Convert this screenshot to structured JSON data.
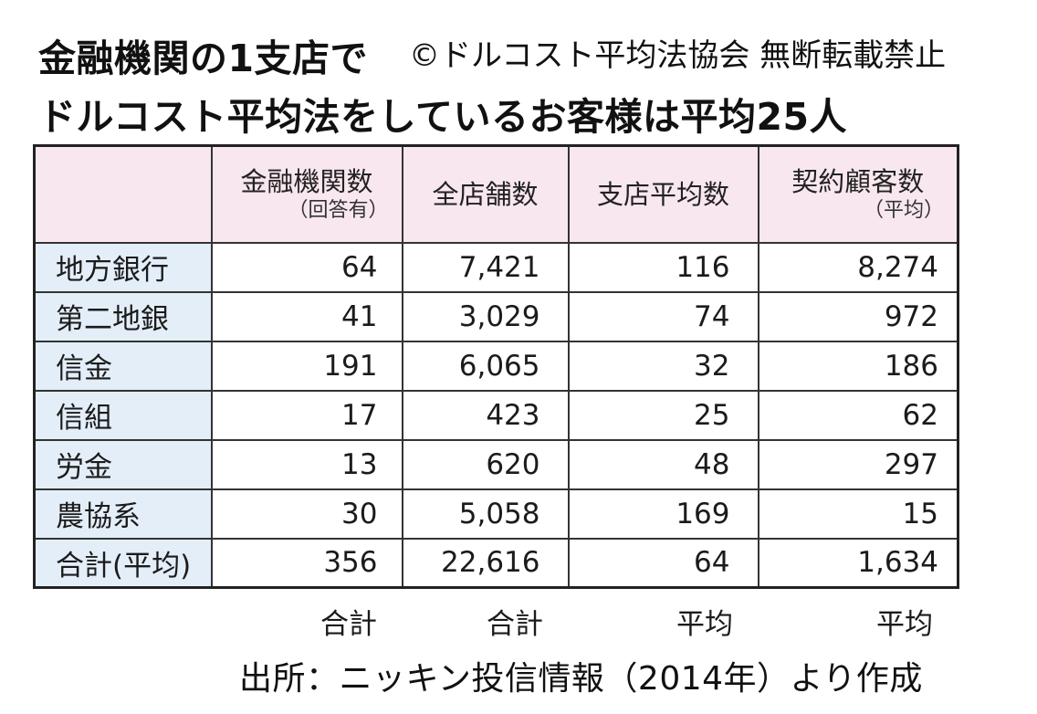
{
  "title": {
    "line1": "金融機関の1支店で",
    "line2": "ドルコスト平均法をしているお客様は平均25人",
    "copyright": "©ドルコスト平均法協会 無断転載禁止"
  },
  "table": {
    "headers": [
      {
        "main": "",
        "sub": ""
      },
      {
        "main": "金融機関数",
        "sub": "（回答有）"
      },
      {
        "main": "全店舗数",
        "sub": ""
      },
      {
        "main": "支店平均数",
        "sub": ""
      },
      {
        "main": "契約顧客数",
        "sub": "（平均）"
      }
    ],
    "rows": [
      {
        "label": "地方銀行",
        "values": [
          "64",
          "7,421",
          "116",
          "8,274"
        ]
      },
      {
        "label": "第二地銀",
        "values": [
          "41",
          "3,029",
          "74",
          "972"
        ]
      },
      {
        "label": "信金",
        "values": [
          "191",
          "6,065",
          "32",
          "186"
        ]
      },
      {
        "label": "信組",
        "values": [
          "17",
          "423",
          "25",
          "62"
        ]
      },
      {
        "label": "労金",
        "values": [
          "13",
          "620",
          "48",
          "297"
        ]
      },
      {
        "label": "農協系",
        "values": [
          "30",
          "5,058",
          "169",
          "15"
        ]
      },
      {
        "label": "合計(平均)",
        "values": [
          "356",
          "22,616",
          "64",
          "1,634"
        ]
      }
    ],
    "footer": [
      "合計",
      "合計",
      "平均",
      "平均"
    ]
  },
  "source": "出所：ニッキン投信情報（2014年）より作成",
  "colors": {
    "header_bg": "#f9e7ef",
    "label_bg": "#e3eef9",
    "border": "#333333"
  }
}
